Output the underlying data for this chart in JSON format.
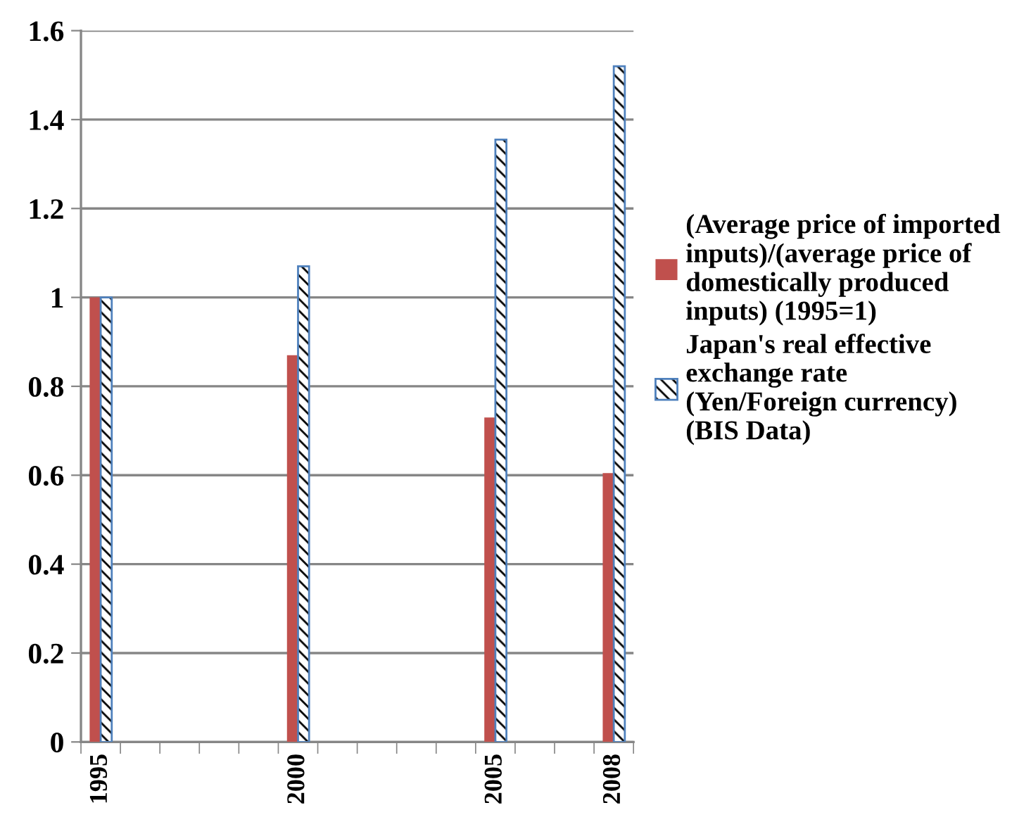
{
  "chart_data": {
    "type": "bar",
    "categories": [
      "1995",
      null,
      null,
      null,
      null,
      "2000",
      null,
      null,
      null,
      null,
      "2005",
      null,
      null,
      "2008"
    ],
    "series": [
      {
        "name": "(Average price of imported inputs)/(average price of domestically produced inputs) (1995=1)",
        "color": "#c0504d",
        "values": [
          1.0,
          null,
          null,
          null,
          null,
          0.87,
          null,
          null,
          null,
          null,
          0.73,
          null,
          null,
          0.605
        ]
      },
      {
        "name": "Japan's real effective exchange rate (Yen/Foreign currency)   (BIS Data)",
        "color": "#4f81bd",
        "values": [
          1.0,
          null,
          null,
          null,
          null,
          1.07,
          null,
          null,
          null,
          null,
          1.355,
          null,
          null,
          1.52
        ]
      }
    ],
    "ylim": [
      0,
      1.6
    ],
    "yticks": [
      0,
      0.2,
      0.4,
      0.6,
      0.8,
      1,
      1.2,
      1.4,
      1.6
    ],
    "grid": "y",
    "legend": "right"
  }
}
